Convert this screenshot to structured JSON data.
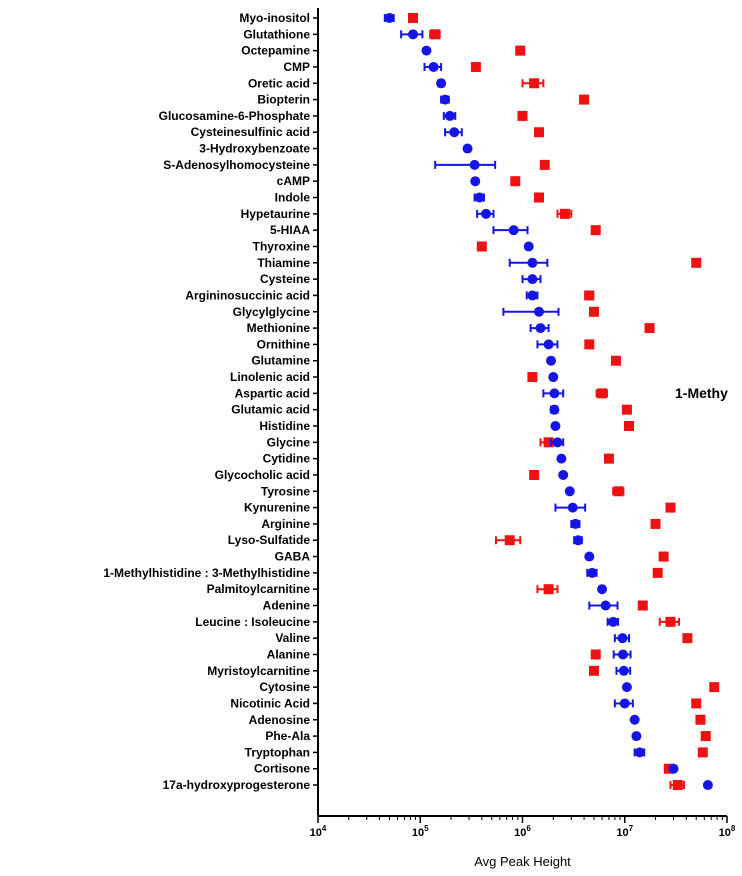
{
  "chart_data": {
    "type": "scatter",
    "orientation": "horizontal",
    "xscale": "log",
    "xlim": [
      10000,
      100000000
    ],
    "xticks": [
      10000,
      100000,
      1000000,
      10000000,
      100000000
    ],
    "xtick_labels": [
      {
        "base": "10",
        "exp": "4"
      },
      {
        "base": "10",
        "exp": "5"
      },
      {
        "base": "10",
        "exp": "6"
      },
      {
        "base": "10",
        "exp": "7"
      },
      {
        "base": "10",
        "exp": "8"
      }
    ],
    "xlabel": "Avg Peak Height",
    "annotation": "1-Methy",
    "grid": false,
    "categories": [
      "Myo-inositol",
      "Glutathione",
      "Octepamine",
      "CMP",
      "Oretic acid",
      "Biopterin",
      "Glucosamine-6-Phosphate",
      "Cysteinesulfinic acid",
      "3-Hydroxybenzoate",
      "S-Adenosylhomocysteine",
      "cAMP",
      "Indole",
      "Hypetaurine",
      "5-HIAA",
      "Thyroxine",
      "Thiamine",
      "Cysteine",
      "Argininosuccinic acid",
      "Glycylglycine",
      "Methionine",
      "Ornithine",
      "Glutamine",
      "Linolenic acid",
      "Aspartic acid",
      "Glutamic acid",
      "Histidine",
      "Glycine",
      "Cytidine",
      "Glycocholic acid",
      "Tyrosine",
      "Kynurenine",
      "Arginine",
      "Lyso-Sulfatide",
      "GABA",
      "1-Methylhistidine : 3-Methylhistidine",
      "Palmitoylcarnitine",
      "Adenine",
      "Leucine : Isoleucine",
      "Valine",
      "Alanine",
      "Myristoylcarnitine",
      "Cytosine",
      "Nicotinic Acid",
      "Adenosine",
      "Phe-Ala",
      "Tryptophan",
      "Cortisone",
      "17a-hydroxyprogesterone"
    ],
    "series": [
      {
        "color": "#1515e6",
        "marker": "circle",
        "values": [
          50000,
          85000,
          115000,
          135000,
          160000,
          175000,
          195000,
          215000,
          290000,
          340000,
          345000,
          380000,
          440000,
          820000,
          1150000,
          1250000,
          1250000,
          1250000,
          1450000,
          1500000,
          1800000,
          1900000,
          2000000,
          2050000,
          2050000,
          2100000,
          2200000,
          2400000,
          2500000,
          2900000,
          3100000,
          3300000,
          3500000,
          4500000,
          4800000,
          6000000,
          6500000,
          7700000,
          9500000,
          9600000,
          9800000,
          10500000,
          10000000,
          12500000,
          13000000,
          14000000,
          30000000,
          65000000
        ],
        "error": [
          5000,
          20000,
          0,
          25000,
          10000,
          15000,
          25000,
          40000,
          0,
          200000,
          0,
          40000,
          80000,
          300000,
          0,
          500000,
          250000,
          150000,
          800000,
          300000,
          400000,
          0,
          0,
          450000,
          150000,
          0,
          300000,
          0,
          0,
          0,
          1000000,
          300000,
          300000,
          0,
          500000,
          0,
          2000000,
          900000,
          1500000,
          1800000,
          1500000,
          0,
          2000000,
          0,
          0,
          1500000,
          0,
          0
        ]
      },
      {
        "color": "#ee1111",
        "marker": "square",
        "values": [
          85000,
          140000,
          950000,
          350000,
          1300000,
          4000000,
          1000000,
          1450000,
          null,
          1650000,
          850000,
          1450000,
          2600000,
          5200000,
          400000,
          50000000,
          null,
          4500000,
          5000000,
          17500000,
          4500000,
          8200000,
          1250000,
          6000000,
          10500000,
          11000000,
          1800000,
          7000000,
          1300000,
          8700000,
          28000000,
          20000000,
          750000,
          24000000,
          21000000,
          1800000,
          15000000,
          28000000,
          41000000,
          5200000,
          5000000,
          75000000,
          50000000,
          55000000,
          62000000,
          58000000,
          27000000,
          33000000
        ],
        "error": [
          0,
          15000,
          0,
          0,
          300000,
          0,
          0,
          0,
          null,
          0,
          0,
          0,
          400000,
          300000,
          0,
          0,
          null,
          400000,
          0,
          1500000,
          0,
          0,
          0,
          700000,
          0,
          0,
          300000,
          0,
          0,
          1000000,
          0,
          0,
          200000,
          0,
          0,
          400000,
          0,
          6000000,
          0,
          0,
          0,
          0,
          0,
          0,
          0,
          0,
          0,
          5000000
        ]
      }
    ]
  }
}
